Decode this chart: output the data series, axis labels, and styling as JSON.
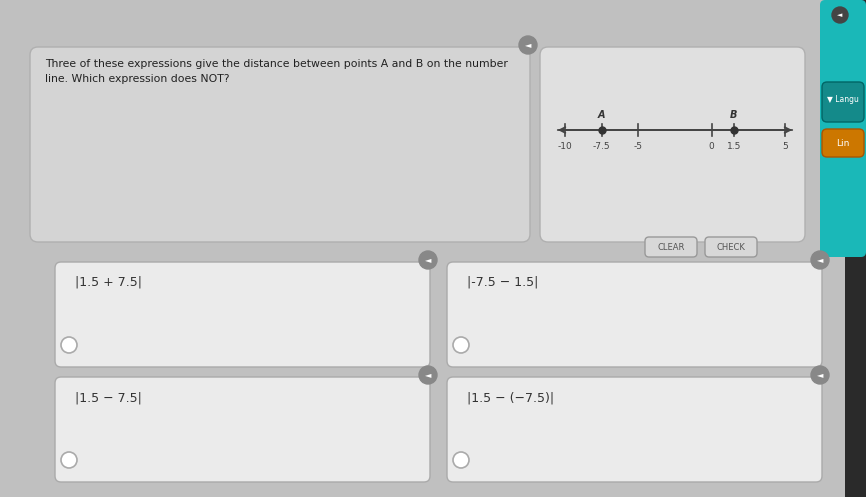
{
  "bg_color": "#c0c0c0",
  "question_text_line1": "Three of these expressions give the distance between points A and B on the number",
  "question_text_line2": "line. Which expression does NOT?",
  "question_box_color": "#d4d4d4",
  "question_box_edge": "#b0b0b0",
  "number_line_bg": "#e0e0e0",
  "number_line_box_edge": "#b0b0b0",
  "nl_data_min": -10,
  "nl_data_max": 5,
  "nl_ticks": [
    -10,
    -5,
    0,
    5
  ],
  "nl_tick_labels": [
    "-10",
    "-5",
    "0",
    "5"
  ],
  "nl_point_A": -7.5,
  "nl_point_B": 1.5,
  "nl_A_label": "A",
  "nl_B_label": "B",
  "nl_A_sublabel": "-7.5",
  "nl_B_sublabel": "1.5",
  "box_bg": "#ebebeb",
  "box_edge": "#aaaaaa",
  "answer_boxes": [
    {
      "text": "|1.5 + 7.5|"
    },
    {
      "text": "|-7.5 − 1.5|"
    },
    {
      "text": "|1.5 − 7.5|"
    },
    {
      "text": "|1.5 − (−7.5)|"
    }
  ],
  "clear_btn_color": "#d8d8d8",
  "check_btn_color": "#d8d8d8",
  "clear_btn_text": "CLEAR",
  "check_btn_text": "CHECK",
  "speaker_color": "#888888",
  "radio_color": "#ffffff",
  "right_teal_color": "#1ab8b8",
  "lang_btn_color": "#148a8a",
  "lang_btn_text": "▼ Langu",
  "orange_btn_color": "#cc7700",
  "orange_btn_text": "Lin",
  "dark_right_panel": "#2a2a2a"
}
